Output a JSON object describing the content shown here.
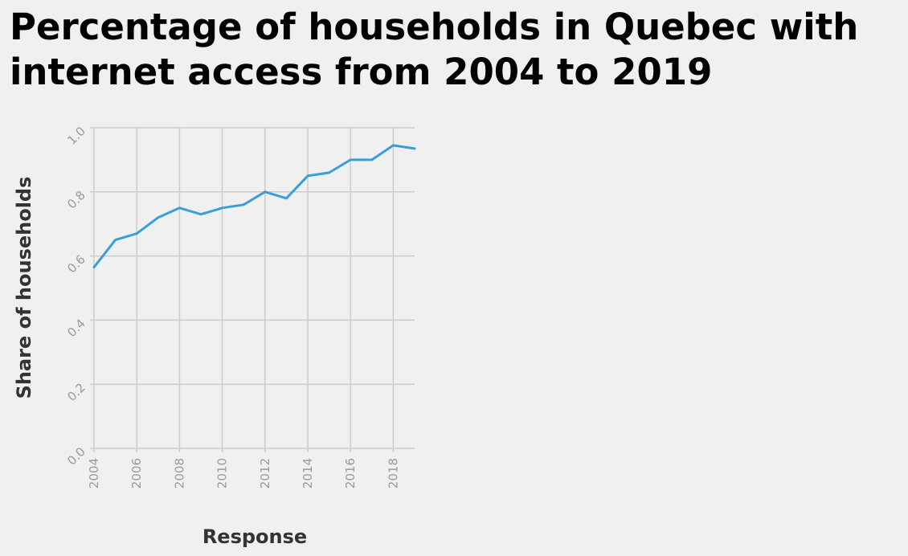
{
  "chart_data": {
    "type": "line",
    "title": "Percentage of households in Quebec with internet access from 2004 to 2019",
    "xlabel": "Response",
    "ylabel": "Share of households",
    "x": [
      2004,
      2005,
      2006,
      2007,
      2008,
      2009,
      2010,
      2011,
      2012,
      2013,
      2014,
      2015,
      2016,
      2017,
      2018,
      2019
    ],
    "series": [
      {
        "values": [
          0.565,
          0.65,
          0.67,
          0.72,
          0.75,
          0.73,
          0.75,
          0.76,
          0.8,
          0.78,
          0.85,
          0.86,
          0.9,
          0.9,
          0.945,
          0.935
        ]
      }
    ],
    "xlim": [
      2004,
      2019
    ],
    "ylim": [
      0.0,
      1.0
    ],
    "x_ticks": [
      "2004",
      "2006",
      "2008",
      "2010",
      "2012",
      "2014",
      "2016",
      "2018"
    ],
    "y_ticks": [
      "0.0",
      "0.2",
      "0.4",
      "0.6",
      "0.8",
      "1.0"
    ],
    "grid": true,
    "line_color": "#3a9fd8",
    "grid_color": "#cccccc",
    "background": "#f0f0f0"
  }
}
